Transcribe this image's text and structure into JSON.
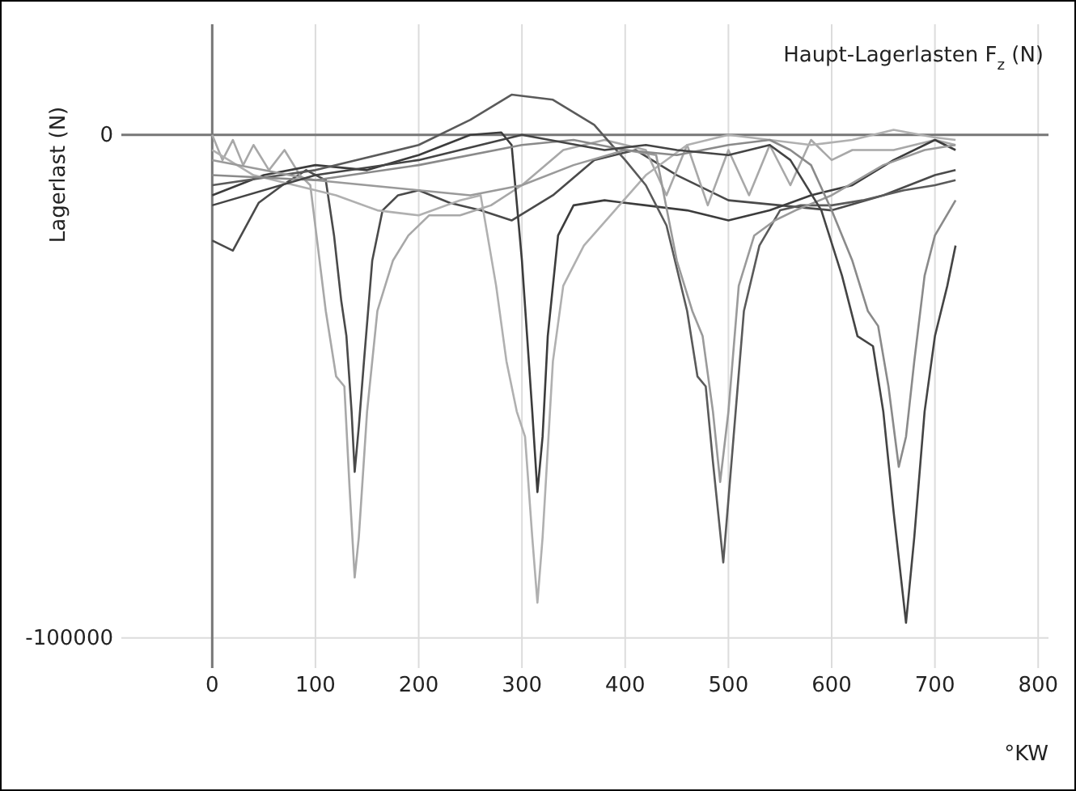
{
  "chart_data": {
    "type": "line",
    "title": "Haupt-Lagerlasten F$_{z}$ (N)",
    "ylabel": "Lagerlast (N)",
    "xlabel": "°KW",
    "xlim": [
      -88,
      810
    ],
    "ylim": [
      -106000,
      22000
    ],
    "xticks": [
      0,
      100,
      200,
      300,
      400,
      500,
      600,
      700,
      800
    ],
    "yticks": [
      0,
      -100000
    ],
    "grid": true,
    "marker": "none",
    "line_style": "solid",
    "series": [
      {
        "color": "#4a4a4a",
        "x": [
          0,
          20,
          45,
          68,
          91,
          110,
          118,
          125,
          130,
          135,
          138,
          142,
          147,
          155,
          165,
          180,
          200,
          230,
          260,
          290,
          330,
          370,
          410,
          450,
          500,
          550,
          600,
          650,
          700,
          720
        ],
        "values": [
          -21000,
          -23000,
          -13500,
          -10000,
          -7000,
          -9000,
          -20000,
          -33000,
          -40000,
          -55000,
          -67000,
          -58000,
          -45000,
          -25000,
          -15000,
          -12000,
          -11000,
          -13500,
          -15000,
          -17000,
          -12000,
          -5000,
          -3000,
          -8000,
          -13000,
          -14000,
          -15000,
          -12000,
          -8000,
          -7000
        ]
      },
      {
        "color": "#a8a8a8",
        "x": [
          0,
          10,
          20,
          30,
          40,
          55,
          70,
          85,
          95,
          110,
          120,
          128,
          133,
          138,
          142,
          150,
          160,
          175,
          190,
          210,
          240,
          270,
          300,
          340,
          380,
          420,
          440,
          460,
          480,
          500,
          520,
          540,
          560,
          580,
          600,
          620,
          660,
          700,
          720
        ],
        "values": [
          0,
          -5000,
          -1000,
          -6000,
          -2000,
          -7000,
          -3000,
          -8000,
          -10000,
          -35000,
          -48000,
          -50000,
          -70000,
          -88000,
          -80000,
          -55000,
          -35000,
          -25000,
          -20000,
          -16000,
          -16000,
          -14000,
          -10000,
          -3000,
          -1000,
          -3000,
          -12000,
          -2000,
          -14000,
          -3000,
          -12000,
          -2000,
          -10000,
          -1000,
          -5000,
          -3000,
          -3000,
          -1000,
          -2000
        ]
      },
      {
        "color": "#3c3c3c",
        "x": [
          0,
          50,
          100,
          150,
          200,
          250,
          280,
          290,
          300,
          305,
          310,
          315,
          320,
          325,
          335,
          350,
          380,
          420,
          460,
          500,
          540,
          580,
          620,
          660,
          700,
          720
        ],
        "values": [
          -12000,
          -8000,
          -6000,
          -7000,
          -4000,
          0,
          500,
          -2000,
          -25000,
          -40000,
          -55000,
          -71000,
          -60000,
          -40000,
          -20000,
          -14000,
          -13000,
          -14000,
          -15000,
          -17000,
          -15000,
          -12000,
          -10000,
          -5000,
          -1000,
          -3000
        ]
      },
      {
        "color": "#b0b0b0",
        "x": [
          0,
          40,
          80,
          120,
          160,
          200,
          240,
          260,
          275,
          285,
          295,
          303,
          310,
          315,
          320,
          330,
          340,
          360,
          390,
          420,
          460,
          500,
          540,
          580,
          620,
          660,
          700,
          720
        ],
        "values": [
          -3000,
          -8000,
          -10000,
          -12000,
          -15000,
          -16000,
          -13000,
          -12000,
          -30000,
          -45000,
          -55000,
          -60000,
          -80000,
          -93000,
          -80000,
          -45000,
          -30000,
          -22000,
          -15000,
          -8000,
          -2000,
          0,
          -1000,
          -2000,
          -1000,
          1000,
          -500,
          -1000
        ]
      },
      {
        "color": "#5a5a5a",
        "x": [
          0,
          100,
          200,
          250,
          290,
          330,
          370,
          400,
          420,
          440,
          460,
          470,
          478,
          485,
          495,
          505,
          515,
          530,
          550,
          570,
          600,
          630,
          670,
          700,
          720
        ],
        "values": [
          -10000,
          -7000,
          -2000,
          3000,
          8000,
          7000,
          2000,
          -5000,
          -10000,
          -18000,
          -35000,
          -48000,
          -50000,
          -65000,
          -85000,
          -60000,
          -35000,
          -22000,
          -15000,
          -14000,
          -14000,
          -13000,
          -11000,
          -10000,
          -9000
        ]
      },
      {
        "color": "#9a9a9a",
        "x": [
          0,
          50,
          100,
          150,
          200,
          250,
          300,
          350,
          400,
          430,
          450,
          465,
          475,
          485,
          492,
          500,
          510,
          525,
          545,
          565,
          600,
          650,
          690,
          720
        ],
        "values": [
          -5000,
          -7000,
          -9000,
          -10000,
          -11000,
          -12000,
          -10000,
          -6000,
          -3000,
          -4000,
          -25000,
          -35000,
          -40000,
          -55000,
          -69000,
          -55000,
          -30000,
          -20000,
          -17000,
          -15000,
          -12000,
          -6000,
          -3000,
          -2000
        ]
      },
      {
        "color": "#8a8a8a",
        "x": [
          0,
          100,
          200,
          300,
          350,
          400,
          450,
          500,
          540,
          560,
          580,
          600,
          620,
          635,
          645,
          655,
          665,
          672,
          680,
          690,
          700,
          720
        ],
        "values": [
          -8000,
          -9000,
          -6000,
          -2000,
          -1000,
          -3000,
          -4000,
          -2000,
          -1000,
          -3000,
          -6000,
          -15000,
          -25000,
          -35000,
          -38000,
          -50000,
          -66000,
          -60000,
          -45000,
          -28000,
          -20000,
          -13000
        ]
      },
      {
        "color": "#444444",
        "x": [
          0,
          100,
          200,
          300,
          380,
          420,
          450,
          500,
          540,
          560,
          590,
          610,
          625,
          640,
          650,
          660,
          672,
          680,
          690,
          700,
          712,
          720
        ],
        "values": [
          -14000,
          -8000,
          -5000,
          0,
          -3000,
          -2000,
          -3000,
          -4000,
          -2000,
          -5000,
          -15000,
          -28000,
          -40000,
          -42000,
          -55000,
          -75000,
          -97000,
          -80000,
          -55000,
          -40000,
          -30000,
          -22000
        ]
      }
    ]
  }
}
